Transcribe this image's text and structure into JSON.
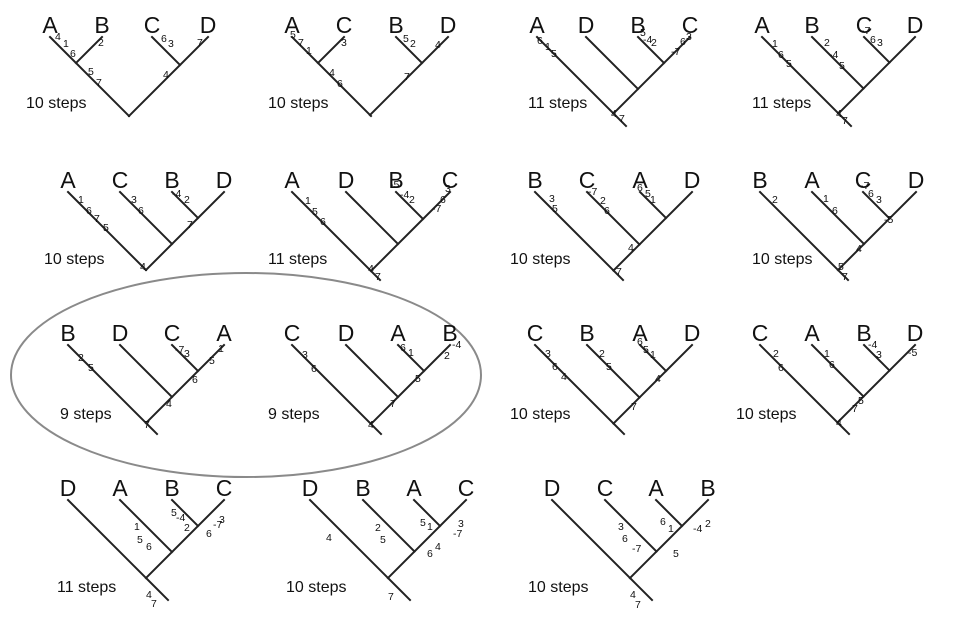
{
  "trees": [
    {
      "id": "t1",
      "leaves": [
        "A",
        "B",
        "C",
        "D"
      ],
      "topology": "AB|CD",
      "steps": "10 steps",
      "marks": [
        "4",
        "1",
        "6",
        "5",
        "7",
        "2",
        "6",
        "3",
        "7",
        "4"
      ]
    },
    {
      "id": "t2",
      "leaves": [
        "A",
        "C",
        "B",
        "D"
      ],
      "topology": "AC|BD",
      "steps": "10 steps",
      "marks": [
        "5",
        "7",
        "1",
        "3",
        "4",
        "6",
        "5",
        "2",
        "4",
        "7"
      ]
    },
    {
      "id": "t3",
      "leaves": [
        "A",
        "D",
        "B",
        "C"
      ],
      "topology": "A,D,(B,C)",
      "steps": "11 steps",
      "marks": [
        "6",
        "1",
        "5",
        "5",
        "-4",
        "2",
        "6",
        "3",
        "-7",
        "4",
        "7"
      ]
    },
    {
      "id": "t4",
      "leaves": [
        "A",
        "B",
        "C",
        "D"
      ],
      "topology": "A,B,(C,D)",
      "steps": "11 steps",
      "marks": [
        "1",
        "6",
        "5",
        "2",
        "-4",
        "5",
        "-7",
        "6",
        "3",
        "4",
        "7"
      ]
    },
    {
      "id": "t5",
      "leaves": [
        "A",
        "C",
        "B",
        "D"
      ],
      "topology": "A,C,(B,D)",
      "steps": "10 steps",
      "marks": [
        "1",
        "6",
        "7",
        "5",
        "3",
        "6",
        "-4",
        "2",
        "7",
        "4"
      ]
    },
    {
      "id": "t6",
      "leaves": [
        "A",
        "D",
        "B",
        "C"
      ],
      "topology": "A,D,(B,C)",
      "steps": "11 steps",
      "marks": [
        "1",
        "5",
        "6",
        "-5",
        "-4",
        "2",
        "3",
        "6",
        "-7",
        "4",
        "7"
      ]
    },
    {
      "id": "t7",
      "leaves": [
        "B",
        "C",
        "A",
        "D"
      ],
      "topology": "B,C,(A,D)",
      "steps": "10 steps",
      "marks": [
        "3",
        "5",
        "-7",
        "2",
        "6",
        "6",
        "5",
        "1",
        "4",
        "7"
      ]
    },
    {
      "id": "t8",
      "leaves": [
        "B",
        "A",
        "C",
        "D"
      ],
      "topology": "B,A,(C,D)",
      "steps": "10 steps",
      "marks": [
        "2",
        "1",
        "6",
        "-7",
        "6",
        "3",
        "-5",
        "4",
        "5",
        "7"
      ]
    },
    {
      "id": "t9",
      "leaves": [
        "B",
        "D",
        "C",
        "A"
      ],
      "topology": "B,D,(C,A)",
      "steps": "9 steps",
      "marks": [
        "2",
        "5",
        "-7",
        "3",
        "1",
        "5",
        "6",
        "4",
        "7"
      ]
    },
    {
      "id": "t10",
      "leaves": [
        "C",
        "D",
        "A",
        "B"
      ],
      "topology": "C,D,(A,B)",
      "steps": "9 steps",
      "marks": [
        "3",
        "6",
        "6",
        "1",
        "-4",
        "2",
        "5",
        "7",
        "4"
      ]
    },
    {
      "id": "t11",
      "leaves": [
        "C",
        "B",
        "A",
        "D"
      ],
      "topology": "C,B,(A,D)",
      "steps": "10 steps",
      "marks": [
        "3",
        "6",
        "4",
        "2",
        "5",
        "6",
        "5",
        "1",
        "4",
        "7"
      ]
    },
    {
      "id": "t12",
      "leaves": [
        "C",
        "A",
        "B",
        "D"
      ],
      "topology": "C,A,(B,D)",
      "steps": "10 steps",
      "marks": [
        "2",
        "6",
        "1",
        "6",
        "-4",
        "3",
        "-5",
        "5",
        "7",
        "4"
      ]
    },
    {
      "id": "t13",
      "leaves": [
        "D",
        "A",
        "B",
        "C"
      ],
      "topology": "D,A,(B,C)",
      "steps": "11 steps",
      "marks": [
        "1",
        "5",
        "6",
        "5",
        "-4",
        "2",
        "6",
        "3",
        "-7",
        "4",
        "7"
      ]
    },
    {
      "id": "t14",
      "leaves": [
        "D",
        "B",
        "A",
        "C"
      ],
      "topology": "D,B,(A,C)",
      "steps": "10 steps",
      "marks": [
        "4",
        "2",
        "5",
        "5",
        "1",
        "3",
        "-7",
        "6",
        "4",
        "7"
      ]
    },
    {
      "id": "t15",
      "leaves": [
        "D",
        "C",
        "A",
        "B"
      ],
      "topology": "D,C,(A,B)",
      "steps": "10 steps",
      "marks": [
        "3",
        "6",
        "-7",
        "6",
        "1",
        "-4",
        "2",
        "5",
        "4",
        "7"
      ]
    }
  ]
}
